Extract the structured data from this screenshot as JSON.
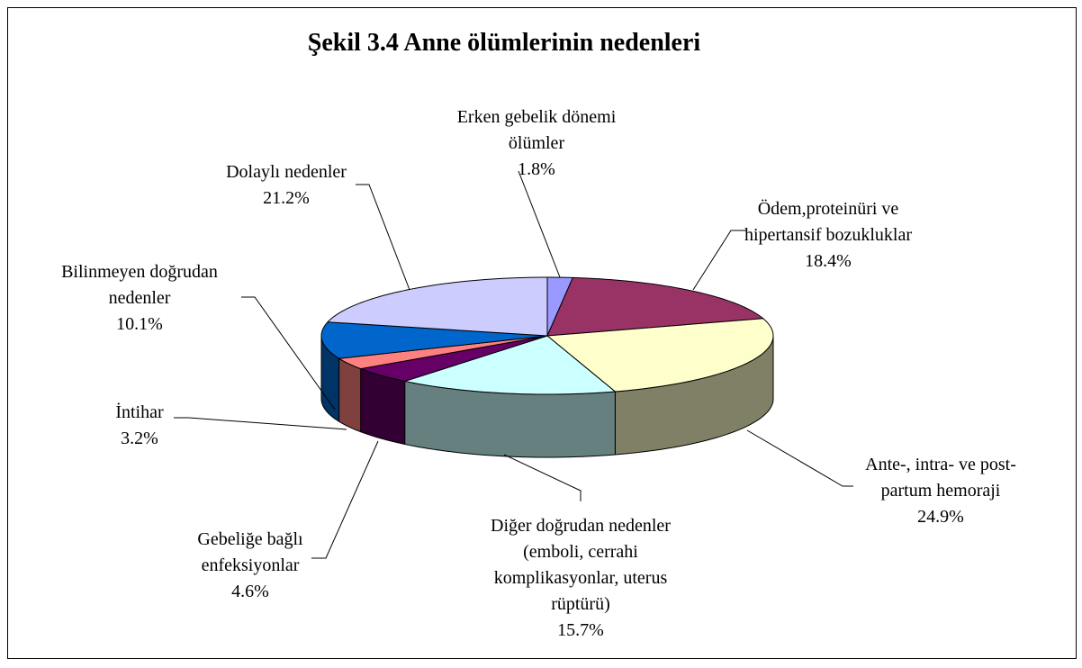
{
  "chart_data": {
    "type": "pie3d",
    "title": "Şekil 3.4 Anne ölümlerinin nedenleri",
    "categories": [
      "Erken gebelik dönemi ölümler",
      "Ödem,proteinüri ve hipertansif bozukluklar",
      "Ante-, intra- ve post-partum hemoraji",
      "Diğer doğrudan nedenler (emboli, cerrahi komplikasyonlar, uterus rüptürü)",
      "Gebeliğe bağlı enfeksiyonlar",
      "İntihar",
      "Bilinmeyen doğrudan nedenler",
      "Dolaylı nedenler"
    ],
    "values": [
      1.8,
      18.4,
      24.9,
      15.7,
      4.6,
      3.2,
      10.1,
      21.2
    ],
    "value_labels": [
      "1.8%",
      "18.4%",
      "24.9%",
      "15.7%",
      "4.6%",
      "3.2%",
      "10.1%",
      "21.2%"
    ],
    "colors": [
      "#9999ff",
      "#993366",
      "#ffffcc",
      "#ccffff",
      "#660066",
      "#ff8080",
      "#0066cc",
      "#ccccff"
    ]
  }
}
